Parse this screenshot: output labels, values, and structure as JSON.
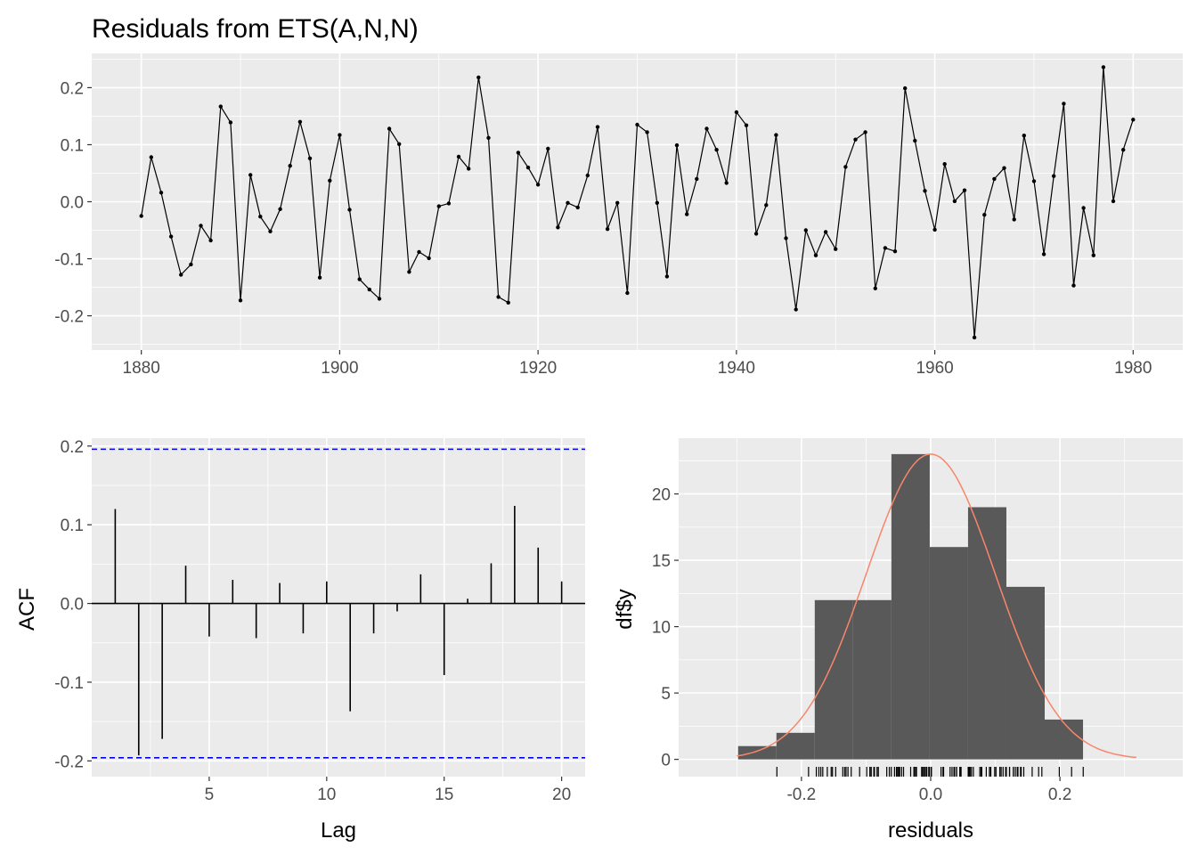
{
  "chart_data": [
    {
      "type": "line",
      "title": "Residuals from ETS(A,N,N)",
      "xlabel": "",
      "ylabel": "",
      "xlim": [
        1875,
        1985
      ],
      "ylim": [
        -0.26,
        0.26
      ],
      "x_ticks": [
        1880,
        1900,
        1920,
        1940,
        1960,
        1980
      ],
      "x_tick_labels": [
        "1880",
        "1900",
        "1920",
        "1940",
        "1960",
        "1980"
      ],
      "y_ticks": [
        -0.2,
        -0.1,
        0.0,
        0.1,
        0.2
      ],
      "y_tick_labels": [
        "-0.2",
        "-0.1",
        "0.0",
        "0.1",
        "0.2"
      ],
      "grid": true,
      "x_start": 1880,
      "values": [
        -0.025,
        0.078,
        0.016,
        -0.061,
        -0.128,
        -0.11,
        -0.042,
        -0.068,
        0.167,
        0.139,
        -0.173,
        0.047,
        -0.026,
        -0.052,
        -0.013,
        0.063,
        0.14,
        0.076,
        -0.133,
        0.037,
        0.117,
        -0.014,
        -0.136,
        -0.154,
        -0.17,
        0.128,
        0.101,
        -0.123,
        -0.088,
        -0.099,
        -0.008,
        -0.003,
        0.079,
        0.058,
        0.218,
        0.112,
        -0.167,
        -0.177,
        0.086,
        0.06,
        0.03,
        0.093,
        -0.045,
        -0.002,
        -0.01,
        0.046,
        0.131,
        -0.048,
        -0.002,
        -0.16,
        0.135,
        0.122,
        -0.002,
        -0.131,
        0.099,
        -0.022,
        0.04,
        0.128,
        0.091,
        0.033,
        0.157,
        0.134,
        -0.056,
        -0.006,
        0.117,
        -0.064,
        -0.189,
        -0.05,
        -0.094,
        -0.053,
        -0.083,
        0.061,
        0.109,
        0.122,
        -0.152,
        -0.081,
        -0.087,
        0.199,
        0.107,
        0.019,
        -0.049,
        0.066,
        0.001,
        0.02,
        -0.238,
        -0.023,
        0.04,
        0.059,
        -0.031,
        0.116,
        0.036,
        -0.092,
        0.045,
        0.172,
        -0.147,
        -0.011,
        -0.094,
        0.236,
        0.001,
        0.091,
        0.144
      ]
    },
    {
      "type": "bar",
      "title": "",
      "xlabel": "Lag",
      "ylabel": "ACF",
      "xlim": [
        0,
        21
      ],
      "ylim": [
        -0.22,
        0.21
      ],
      "x_ticks": [
        5,
        10,
        15,
        20
      ],
      "x_tick_labels": [
        "5",
        "10",
        "15",
        "20"
      ],
      "y_ticks": [
        -0.2,
        -0.1,
        0.0,
        0.1,
        0.2
      ],
      "y_tick_labels": [
        "-0.2",
        "-0.1",
        "0.0",
        "0.1",
        "0.2"
      ],
      "grid": true,
      "categories": [
        1,
        2,
        3,
        4,
        5,
        6,
        7,
        8,
        9,
        10,
        11,
        12,
        13,
        14,
        15,
        16,
        17,
        18,
        19,
        20
      ],
      "values": [
        0.12,
        -0.193,
        -0.172,
        0.048,
        -0.042,
        0.03,
        -0.044,
        0.026,
        -0.038,
        0.028,
        -0.137,
        -0.038,
        -0.01,
        0.037,
        -0.091,
        0.006,
        0.051,
        0.124,
        0.071,
        0.028
      ],
      "confidence_bounds": [
        0.196,
        -0.196
      ],
      "bound_color": "#0000ff"
    },
    {
      "type": "bar",
      "title": "",
      "xlabel": "residuals",
      "ylabel": "df$y",
      "xlim": [
        -0.39,
        0.39
      ],
      "ylim": [
        -1.3,
        24.2
      ],
      "x_ticks": [
        -0.2,
        0.0,
        0.2
      ],
      "x_tick_labels": [
        "-0.2",
        "0.0",
        "0.2"
      ],
      "y_ticks": [
        0,
        5,
        10,
        15,
        20
      ],
      "y_tick_labels": [
        "0",
        "5",
        "10",
        "15",
        "20"
      ],
      "grid": true,
      "bin_width": 0.0593,
      "bins_start": -0.298,
      "values": [
        1,
        2,
        12,
        12,
        23,
        16,
        19,
        13,
        3
      ],
      "bar_color": "#595959",
      "density_curve": {
        "mean": 0.0,
        "sd": 0.1,
        "peak": 23,
        "range": [
          -0.3,
          0.318
        ],
        "color": "#f8866a"
      },
      "rug_from": "residuals"
    }
  ]
}
